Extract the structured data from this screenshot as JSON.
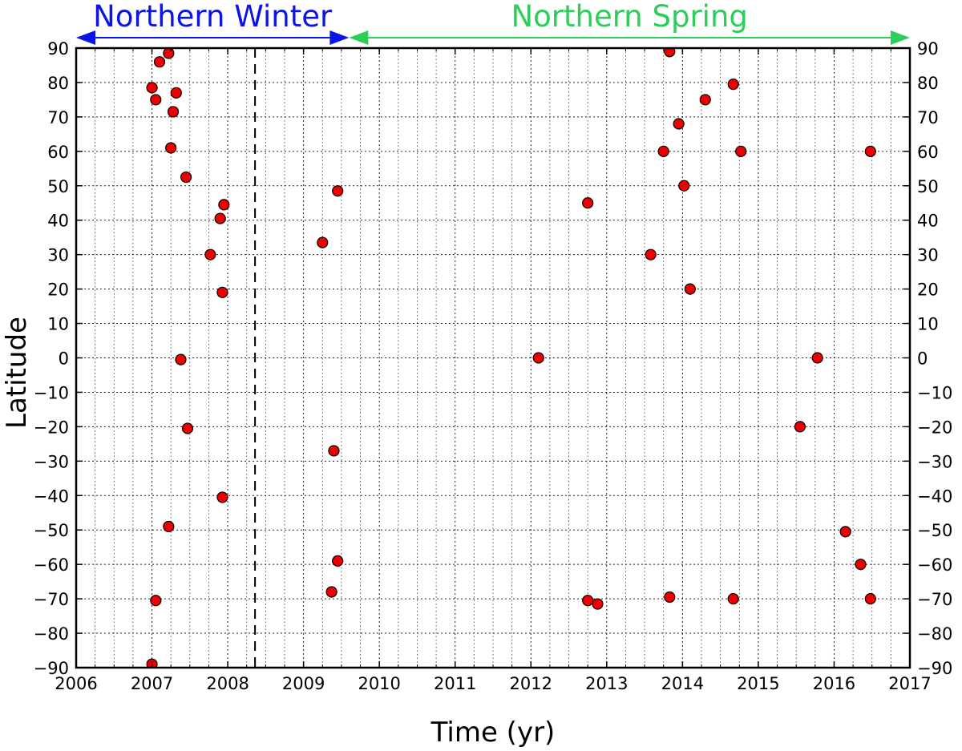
{
  "chart_data": {
    "type": "scatter",
    "title": "",
    "xlabel": "Time (yr)",
    "ylabel": "Latitude",
    "xlim": [
      2006,
      2017
    ],
    "ylim": [
      -90,
      90
    ],
    "x_ticks": [
      "2006",
      "2007",
      "2008",
      "2009",
      "2010",
      "2011",
      "2012",
      "2013",
      "2014",
      "2015",
      "2016",
      "2017"
    ],
    "y_ticks": [
      "90",
      "80",
      "70",
      "60",
      "50",
      "40",
      "30",
      "20",
      "10",
      "0",
      "−10",
      "−20",
      "−30",
      "−40",
      "−50",
      "−60",
      "−70",
      "−80",
      "−90"
    ],
    "y_ticks_right": [
      "90",
      "80",
      "70",
      "60",
      "50",
      "40",
      "30",
      "20",
      "10",
      "0",
      "−10",
      "−20",
      "−30",
      "−40",
      "−50",
      "−60",
      "−70",
      "−80",
      "−90"
    ],
    "grid": true,
    "marker_color": "#ee0000",
    "vline": {
      "x": 2008.36,
      "style": "dashed"
    },
    "seasons": [
      {
        "label": "Northern Winter",
        "x_start": 2006,
        "x_end": 2009.6,
        "color": "#0a14e6"
      },
      {
        "label": "Northern Spring",
        "x_start": 2009.6,
        "x_end": 2017,
        "color": "#2ecc5a"
      }
    ],
    "points": [
      {
        "x": 2007.0,
        "y": 78.5
      },
      {
        "x": 2007.05,
        "y": 75
      },
      {
        "x": 2007.1,
        "y": 86
      },
      {
        "x": 2007.22,
        "y": 88.5
      },
      {
        "x": 2007.32,
        "y": 77
      },
      {
        "x": 2007.28,
        "y": 71.5
      },
      {
        "x": 2007.25,
        "y": 61
      },
      {
        "x": 2007.45,
        "y": 52.5
      },
      {
        "x": 2007.95,
        "y": 44.5
      },
      {
        "x": 2007.9,
        "y": 40.5
      },
      {
        "x": 2007.77,
        "y": 30
      },
      {
        "x": 2007.93,
        "y": 19
      },
      {
        "x": 2007.38,
        "y": -0.5
      },
      {
        "x": 2007.47,
        "y": -20.5
      },
      {
        "x": 2007.93,
        "y": -40.5
      },
      {
        "x": 2007.22,
        "y": -49
      },
      {
        "x": 2007.05,
        "y": -70.5
      },
      {
        "x": 2007.0,
        "y": -89
      },
      {
        "x": 2009.25,
        "y": 33.5
      },
      {
        "x": 2009.45,
        "y": 48.5
      },
      {
        "x": 2009.4,
        "y": -27
      },
      {
        "x": 2009.45,
        "y": -59
      },
      {
        "x": 2009.37,
        "y": -68
      },
      {
        "x": 2012.1,
        "y": 0
      },
      {
        "x": 2012.75,
        "y": 45
      },
      {
        "x": 2012.75,
        "y": -70.5
      },
      {
        "x": 2012.88,
        "y": -71.5
      },
      {
        "x": 2013.58,
        "y": 30
      },
      {
        "x": 2013.75,
        "y": 60
      },
      {
        "x": 2013.83,
        "y": 89
      },
      {
        "x": 2013.95,
        "y": 68
      },
      {
        "x": 2014.02,
        "y": 50
      },
      {
        "x": 2014.1,
        "y": 20
      },
      {
        "x": 2013.83,
        "y": -69.5
      },
      {
        "x": 2014.3,
        "y": 75
      },
      {
        "x": 2014.67,
        "y": 79.5
      },
      {
        "x": 2014.77,
        "y": 60
      },
      {
        "x": 2014.67,
        "y": -70
      },
      {
        "x": 2015.55,
        "y": -20
      },
      {
        "x": 2015.78,
        "y": 0
      },
      {
        "x": 2016.15,
        "y": -50.5
      },
      {
        "x": 2016.35,
        "y": -60
      },
      {
        "x": 2016.48,
        "y": 60
      },
      {
        "x": 2016.48,
        "y": -70
      }
    ]
  }
}
